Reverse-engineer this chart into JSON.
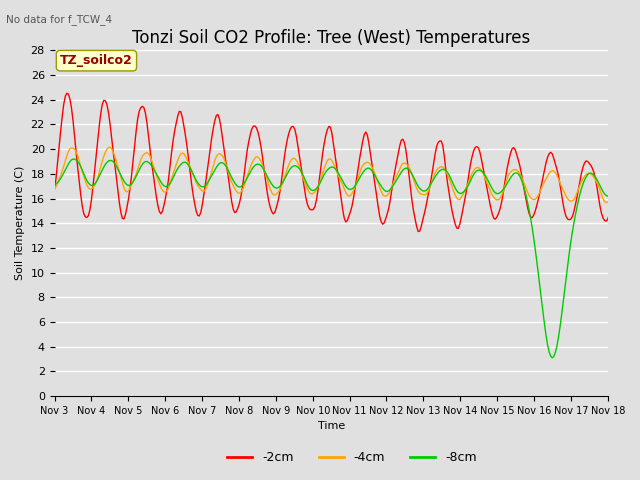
{
  "title": "Tonzi Soil CO2 Profile: Tree (West) Temperatures",
  "subtitle": "No data for f_TCW_4",
  "xlabel": "Time",
  "ylabel": "Soil Temperature (C)",
  "ylim": [
    0,
    28
  ],
  "yticks": [
    0,
    2,
    4,
    6,
    8,
    10,
    12,
    14,
    16,
    18,
    20,
    22,
    24,
    26,
    28
  ],
  "legend_label": "TZ_soilco2",
  "series_labels": [
    "-2cm",
    "-4cm",
    "-8cm"
  ],
  "series_colors": [
    "#ff0000",
    "#ffa500",
    "#00cc00"
  ],
  "bg_color": "#e0e0e0",
  "plot_bg_color": "#e0e0e0",
  "grid_color": "#ffffff",
  "xtick_labels": [
    "Nov 3",
    "Nov 4",
    "Nov 5",
    "Nov 6",
    "Nov 7",
    "Nov 8",
    "Nov 9",
    "Nov 10",
    "Nov 11",
    "Nov 12",
    "Nov 13",
    "Nov 14",
    "Nov 15",
    "Nov 16",
    "Nov 17",
    "Nov 18"
  ],
  "xtick_positions": [
    0,
    1,
    2,
    3,
    4,
    5,
    6,
    7,
    8,
    9,
    10,
    11,
    12,
    13,
    14,
    15
  ],
  "title_fontsize": 12,
  "axis_fontsize": 8,
  "legend_box_color": "#ffffcc",
  "legend_text_color": "#990000"
}
